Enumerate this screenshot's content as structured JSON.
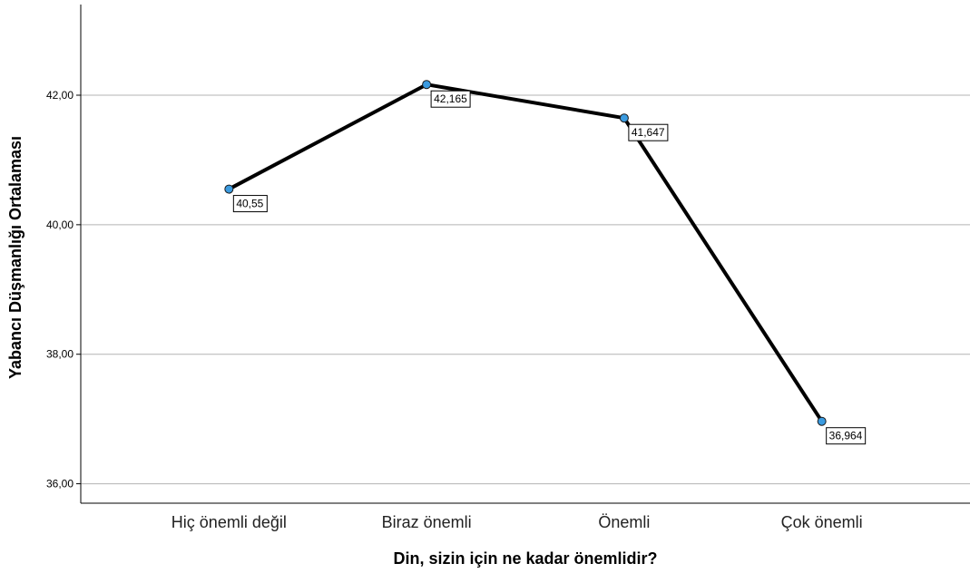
{
  "chart_data": {
    "type": "line",
    "categories": [
      "Hiç önemli değil",
      "Biraz önemli",
      "Önemli",
      "Çok önemli"
    ],
    "values": [
      40.55,
      42.165,
      41.647,
      36.964
    ],
    "data_labels": [
      "40,55",
      "42,165",
      "41,647",
      "36,964"
    ],
    "xlabel": "Din, sizin için ne kadar önemlidir?",
    "ylabel": "Yabancı Düşmanlığı Ortalaması",
    "ylim": [
      35.7,
      43.4
    ],
    "yticks": [
      36,
      38,
      40,
      42
    ],
    "ytick_labels": [
      "36,00",
      "38,00",
      "40,00",
      "42,00"
    ],
    "grid": true,
    "colors": {
      "line": "#000000",
      "marker": "#3b9be0",
      "marker_edge": "#1a1a1a",
      "grid": "#b3b3b3"
    }
  }
}
